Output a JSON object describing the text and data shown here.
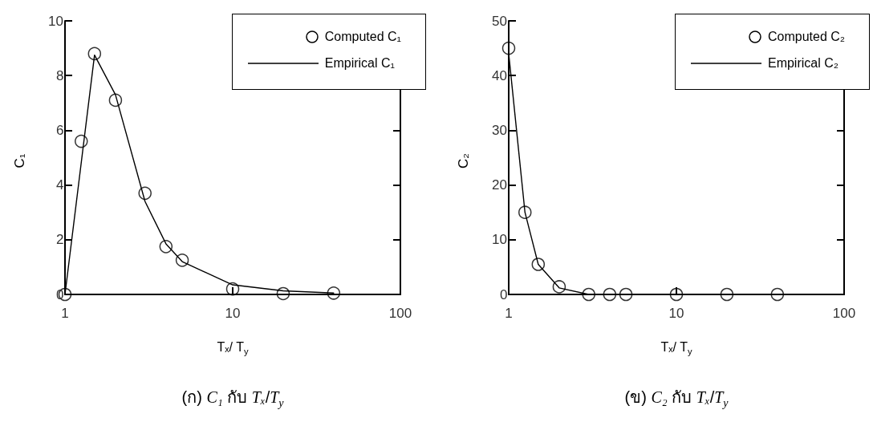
{
  "chart_data": [
    {
      "type": "scatter",
      "log": "x",
      "xlim": [
        1,
        100
      ],
      "xticks": [
        1,
        10,
        100
      ],
      "ylim": [
        0,
        10
      ],
      "yticks": [
        0,
        2,
        4,
        6,
        8,
        10
      ],
      "xlabel": "Tₓ/ T$_{y}$",
      "ylabel": "C₁",
      "legend": "top right",
      "grid": false,
      "annotations": [
        "(ก) C₁ กับ Tₓ/T$_{y}$"
      ],
      "series": [
        {
          "name": "Computed C₁",
          "marker": "circle",
          "color": "#000000",
          "x": [
            1,
            1.25,
            1.5,
            2,
            3,
            4,
            5,
            10,
            20,
            40
          ],
          "values": [
            0,
            5.6,
            8.8,
            7.1,
            3.7,
            1.75,
            1.25,
            0.2,
            0.03,
            0.05
          ]
        },
        {
          "name": "Empirical C₁",
          "type": "line",
          "line_style": "solid",
          "color": "#000000",
          "x": [
            1,
            1.5,
            2,
            3,
            4,
            5,
            10,
            20,
            40
          ],
          "values": [
            0,
            8.75,
            7.3,
            3.4,
            1.85,
            1.2,
            0.35,
            0.13,
            0.05
          ]
        }
      ]
    },
    {
      "type": "scatter",
      "log": "x",
      "xlim": [
        1,
        100
      ],
      "xticks": [
        1,
        10,
        100
      ],
      "ylim": [
        0,
        50
      ],
      "yticks": [
        0,
        10,
        20,
        30,
        40,
        50
      ],
      "xlabel": "Tₓ/ T$_{y}$",
      "ylabel": "C₂",
      "legend": "top right",
      "grid": false,
      "annotations": [
        "(ข) C₂ กับ Tₓ/T$_{y}$"
      ],
      "series": [
        {
          "name": "Computed C₂",
          "marker": "circle",
          "color": "#000000",
          "x": [
            1,
            1.25,
            1.5,
            2,
            3,
            4,
            5,
            10,
            20,
            40
          ],
          "values": [
            45,
            15,
            5.5,
            1.4,
            0,
            0,
            0,
            0,
            0,
            0
          ]
        },
        {
          "name": "Empirical C₂",
          "type": "line",
          "line_style": "solid",
          "color": "#000000",
          "x": [
            1,
            1.25,
            1.5,
            2,
            3,
            4,
            5,
            10,
            20,
            40
          ],
          "values": [
            44,
            15,
            5.5,
            1.2,
            0,
            0,
            0,
            0,
            0,
            0
          ]
        }
      ]
    }
  ]
}
